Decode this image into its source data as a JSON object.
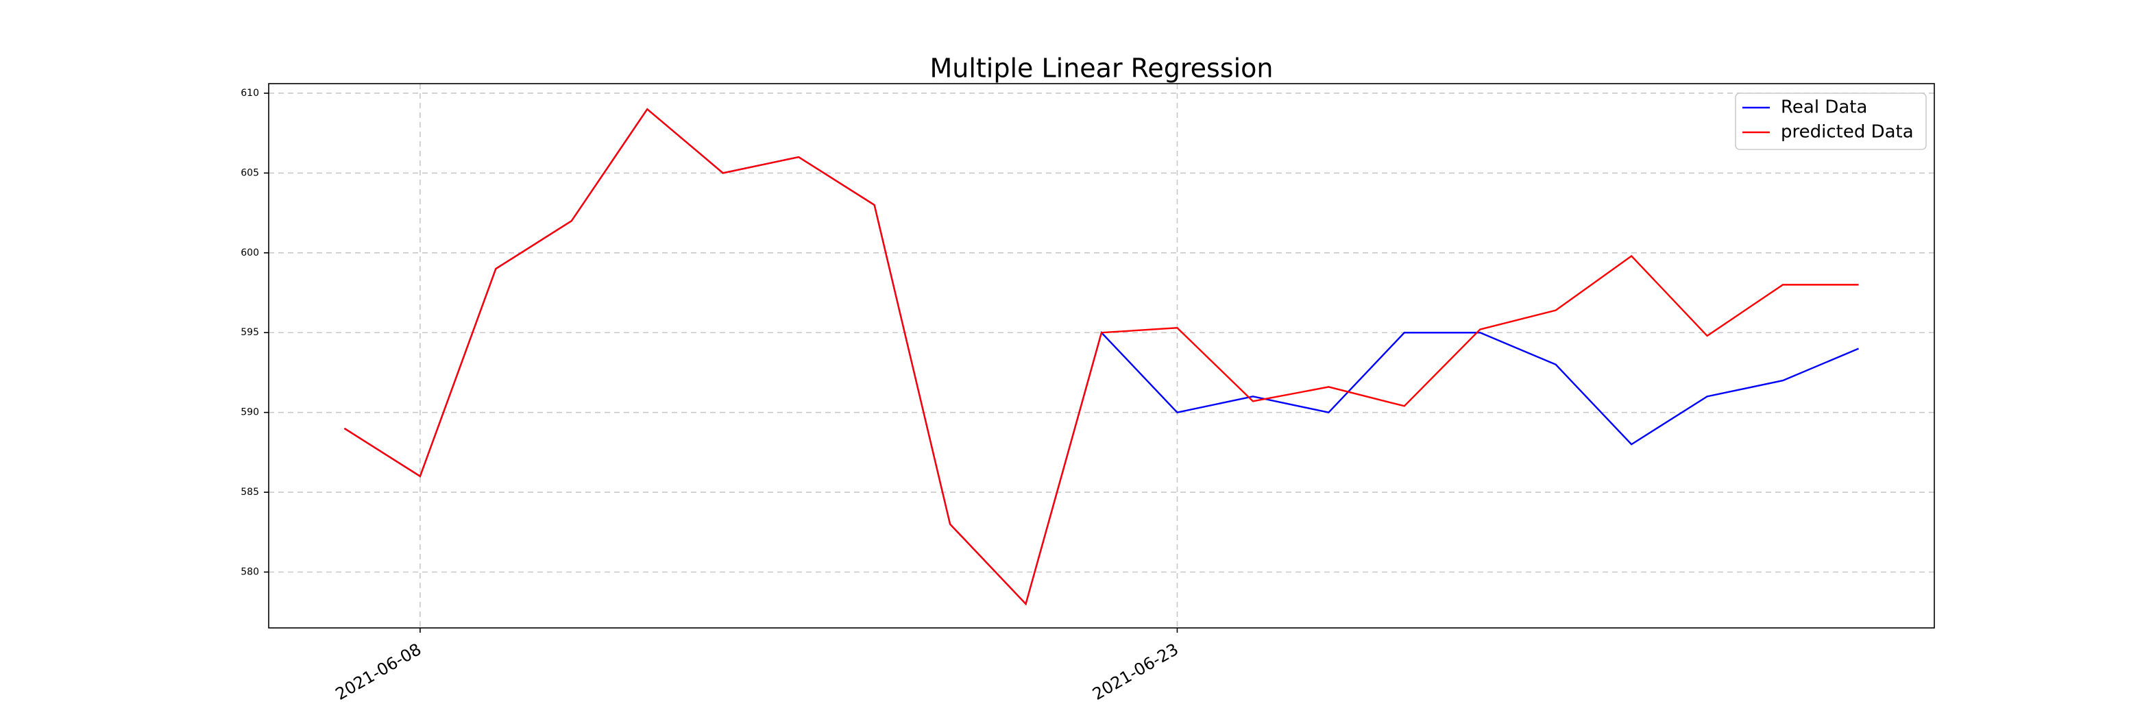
{
  "chart_data": {
    "type": "line",
    "title": "Multiple Linear Regression",
    "categories": [
      null,
      "2021-06-08",
      null,
      null,
      null,
      null,
      null,
      null,
      null,
      null,
      null,
      "2021-06-23",
      null,
      null,
      null,
      null,
      null,
      null,
      null,
      null,
      null
    ],
    "series": [
      {
        "name": "Real Data",
        "color": "#0000ff",
        "values": [
          589,
          586,
          599,
          602,
          609,
          605,
          606,
          603,
          583,
          578,
          595,
          590,
          591,
          590,
          595,
          595,
          593,
          588,
          591,
          592,
          594
        ]
      },
      {
        "name": "predicted Data",
        "color": "#ff0000",
        "values": [
          589,
          586,
          599,
          602,
          609,
          605,
          606,
          603,
          583,
          578,
          595,
          595.3,
          590.7,
          591.6,
          590.4,
          595.2,
          596.4,
          599.8,
          594.8,
          598,
          598
        ]
      }
    ],
    "ylim": [
      576.5,
      610.6
    ],
    "yticks": [
      580,
      585,
      590,
      595,
      600,
      605,
      610
    ],
    "grid": true,
    "legend": "upper right"
  }
}
